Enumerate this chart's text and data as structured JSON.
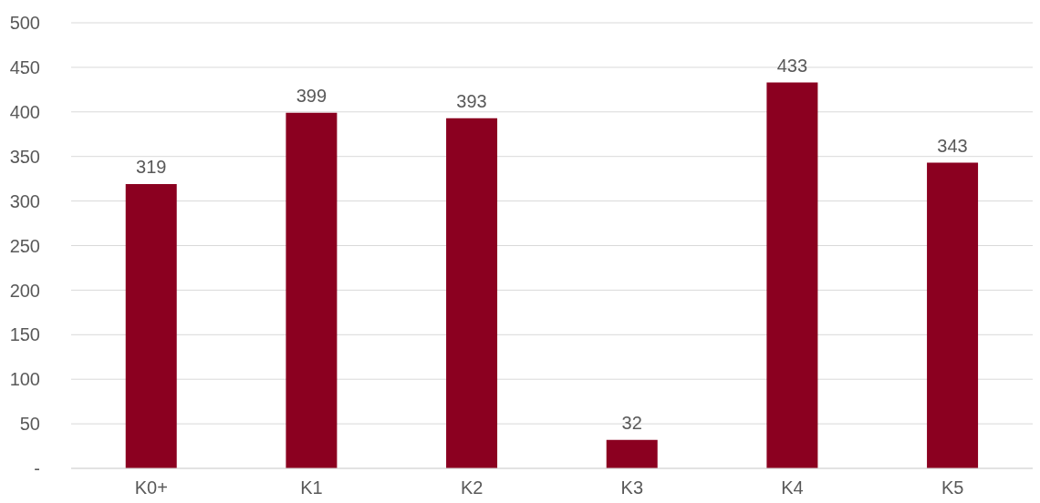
{
  "chart_data": {
    "type": "bar",
    "categories": [
      "K0+",
      "K1",
      "K2",
      "K3",
      "K4",
      "K5"
    ],
    "values": [
      319,
      399,
      393,
      32,
      433,
      343
    ],
    "color": "#8b0020",
    "ylim": [
      0,
      500
    ],
    "yticks": [
      {
        "value": 0,
        "label": "-"
      },
      50,
      100,
      150,
      200,
      250,
      300,
      350,
      400,
      450,
      500
    ],
    "grid": "y",
    "data_labels": true
  }
}
